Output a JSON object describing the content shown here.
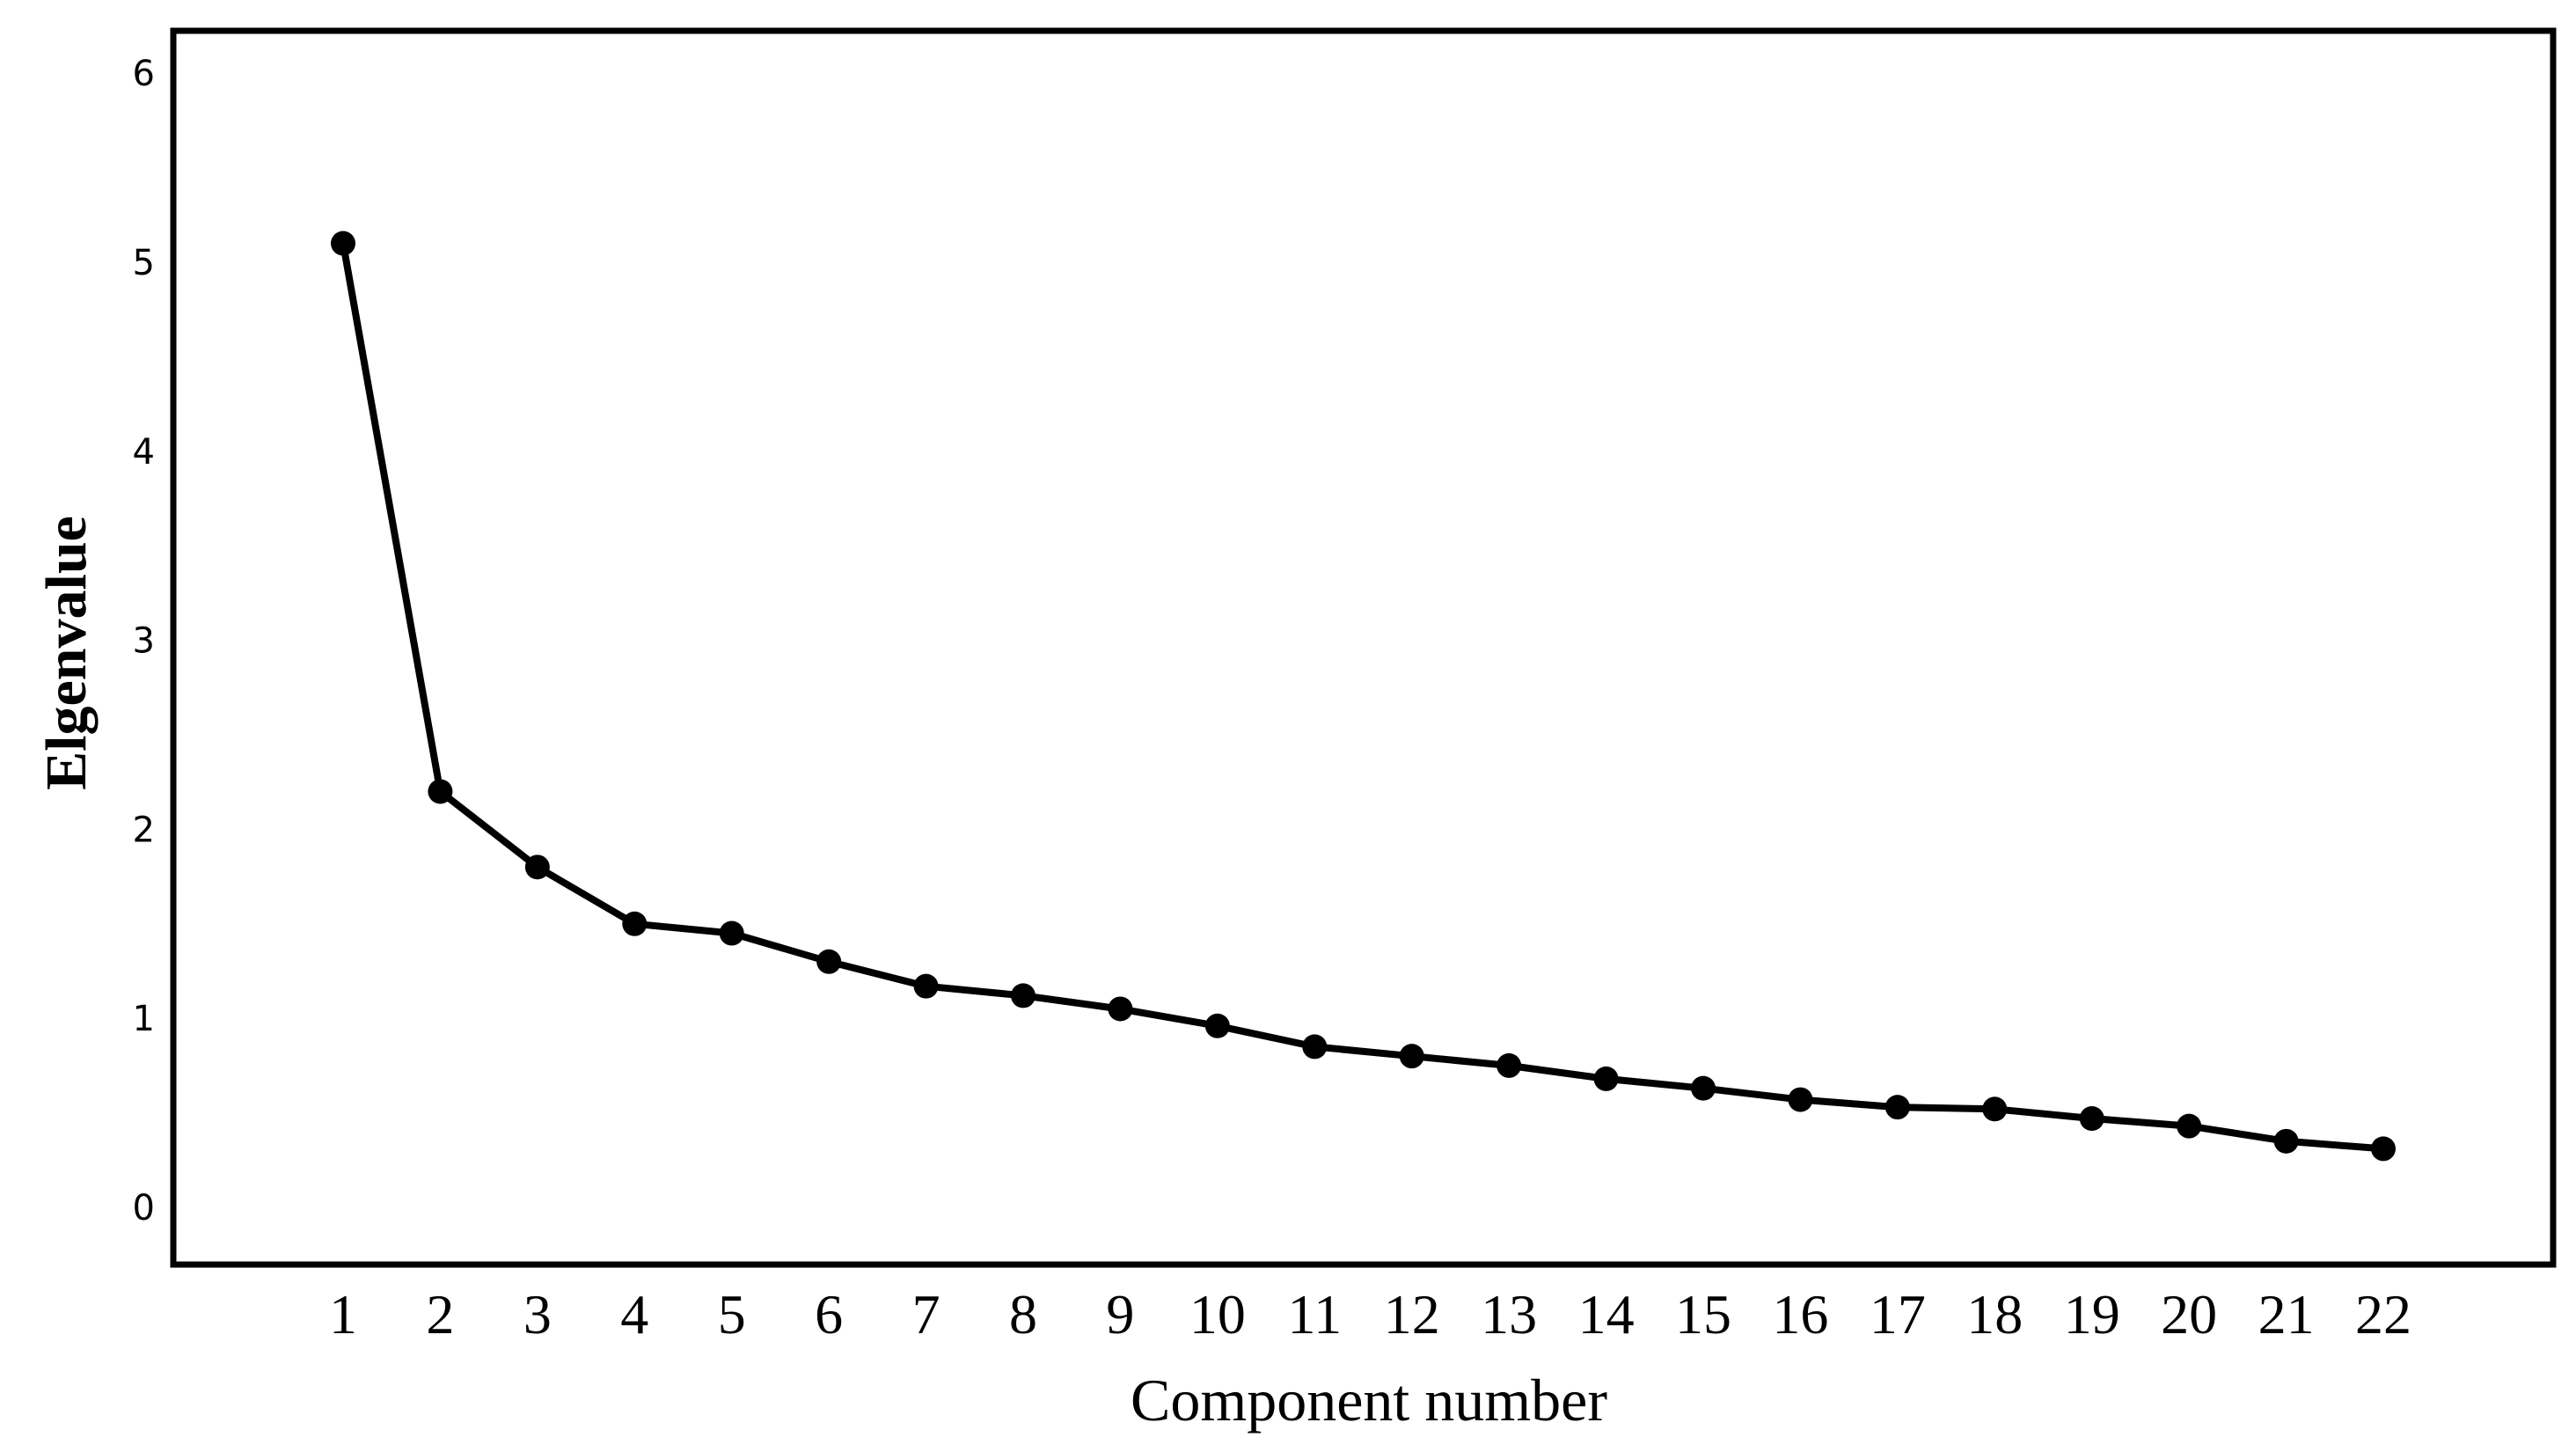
{
  "chart_data": {
    "type": "line",
    "xlabel": "Component number",
    "ylabel": "Elgenvalue",
    "x": [
      1,
      2,
      3,
      4,
      5,
      6,
      7,
      8,
      9,
      10,
      11,
      12,
      13,
      14,
      15,
      16,
      17,
      18,
      19,
      20,
      21,
      22
    ],
    "x_tick_labels": [
      "1",
      "2",
      "3",
      "4",
      "5",
      "6",
      "7",
      "8",
      "9",
      "10",
      "11",
      "12",
      "13",
      "14",
      "15",
      "16",
      "17",
      "18",
      "19",
      "20",
      "21",
      "22"
    ],
    "series": [
      {
        "values": [
          5.1,
          2.2,
          1.8,
          1.5,
          1.45,
          1.3,
          1.17,
          1.12,
          1.05,
          0.96,
          0.85,
          0.8,
          0.75,
          0.68,
          0.63,
          0.57,
          0.53,
          0.52,
          0.47,
          0.43,
          0.35,
          0.31
        ]
      }
    ],
    "y_ticks": [
      0,
      1,
      2,
      3,
      4,
      5,
      6
    ],
    "ylim": [
      -0.3,
      6.35
    ],
    "grid": false,
    "legend": "none",
    "colors": {
      "line": "#000000",
      "marker": "#000000",
      "frame": "#000000"
    }
  }
}
